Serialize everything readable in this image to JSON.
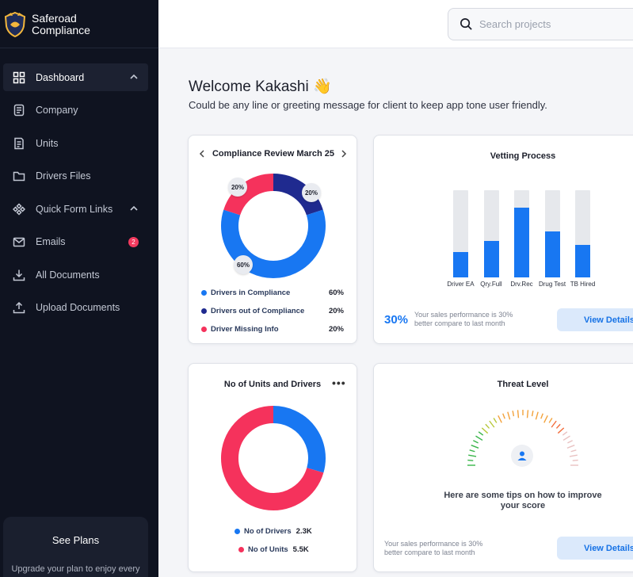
{
  "brand": {
    "line1": "Saferoad",
    "line2": "Compliance"
  },
  "sidebar": {
    "items": [
      {
        "label": "Dashboard",
        "icon": "grid-icon",
        "active": true,
        "chevron": true
      },
      {
        "label": "Company",
        "icon": "company-icon"
      },
      {
        "label": "Units",
        "icon": "units-icon"
      },
      {
        "label": "Drivers Files",
        "icon": "folder-icon"
      },
      {
        "label": "Quick Form Links",
        "icon": "links-icon",
        "chevron": true
      },
      {
        "label": "Emails",
        "icon": "mail-icon",
        "badge": "2"
      },
      {
        "label": "All Documents",
        "icon": "download-icon"
      },
      {
        "label": "Upload Documents",
        "icon": "upload-icon"
      }
    ],
    "plans": {
      "title": "See Plans",
      "text": "Upgrade your plan to enjoy every"
    }
  },
  "search": {
    "placeholder": "Search projects"
  },
  "welcome": {
    "title": "Welcome Kakashi 👋",
    "subtitle": "Could be any line or greeting message for client to keep app tone user friendly."
  },
  "compliance_card": {
    "title": "Compliance Review March 25",
    "legend": [
      {
        "label": "Drivers in Compliance",
        "value": "60%",
        "color": "#1877f2"
      },
      {
        "label": "Drivers out of Compliance",
        "value": "20%",
        "color": "#1f2a8f"
      },
      {
        "label": "Driver Missing Info",
        "value": "20%",
        "color": "#f5325c"
      }
    ],
    "badges": [
      "20%",
      "20%",
      "60%"
    ]
  },
  "vetting_card": {
    "title": "Vetting Process",
    "big_pct": "30%",
    "perf_text": "Your sales performance is 30% better compare to last month",
    "button": "View Details"
  },
  "units_card": {
    "title": "No of Units and Drivers",
    "menu": "•••",
    "legend": [
      {
        "label": "No of Drivers",
        "value": "2.3K",
        "color": "#1877f2"
      },
      {
        "label": "No of Units",
        "value": "5.5K",
        "color": "#f5325c"
      }
    ]
  },
  "threat_card": {
    "title": "Threat Level",
    "tips": "Here are some tips on how to improve your score",
    "perf_text": "Your sales performance is 30% better compare to last month",
    "button": "View Details"
  },
  "chart_data": [
    {
      "type": "pie",
      "title": "Compliance Review March 25",
      "categories": [
        "Drivers in Compliance",
        "Drivers out of Compliance",
        "Driver Missing Info"
      ],
      "values": [
        60,
        20,
        20
      ],
      "colors": [
        "#1877f2",
        "#1f2a8f",
        "#f5325c"
      ]
    },
    {
      "type": "bar",
      "title": "Vetting Process",
      "categories": [
        "Driver EA",
        "Qry.Full",
        "Drv.Rec",
        "Drug Test",
        "TB Hired"
      ],
      "values": [
        29,
        42,
        80,
        53,
        37
      ],
      "ylim": [
        0,
        100
      ],
      "colors": {
        "fill": "#1877f2",
        "track": "#e6e8ec"
      }
    },
    {
      "type": "pie",
      "title": "No of Units and Drivers",
      "categories": [
        "No of Drivers",
        "No of Units"
      ],
      "values": [
        2.3,
        5.5
      ],
      "colors": [
        "#1877f2",
        "#f5325c"
      ]
    }
  ]
}
